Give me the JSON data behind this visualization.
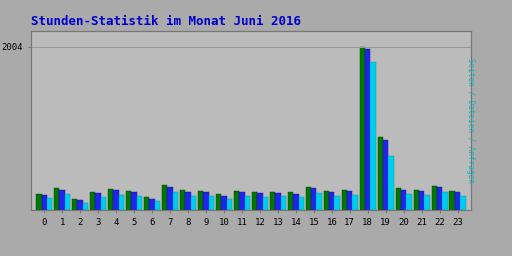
{
  "title": "Stunden-Statistik im Monat Juni 2016",
  "title_color": "#0000cc",
  "background_color": "#aaaaaa",
  "plot_bg_color": "#bbbbbb",
  "ylabel_right": "Seiten / Dateien / Anfragen",
  "ylabel_right_color": "#00bbcc",
  "hours": [
    0,
    1,
    2,
    3,
    4,
    5,
    6,
    7,
    8,
    9,
    10,
    11,
    12,
    13,
    14,
    15,
    16,
    17,
    18,
    19,
    20,
    21,
    22,
    23
  ],
  "seiten": [
    200,
    270,
    130,
    220,
    255,
    235,
    155,
    300,
    240,
    235,
    190,
    235,
    220,
    225,
    215,
    280,
    235,
    250,
    2004,
    900,
    265,
    250,
    295,
    230
  ],
  "dateien": [
    185,
    250,
    120,
    205,
    240,
    218,
    140,
    285,
    225,
    218,
    175,
    218,
    205,
    210,
    200,
    265,
    218,
    235,
    1980,
    860,
    248,
    235,
    278,
    215
  ],
  "anfragen": [
    145,
    195,
    90,
    162,
    188,
    170,
    108,
    222,
    177,
    170,
    135,
    170,
    160,
    165,
    155,
    207,
    170,
    183,
    1820,
    660,
    193,
    183,
    218,
    168
  ],
  "color_seiten": "#007700",
  "color_dateien": "#2222ee",
  "color_anfragen": "#00ccee",
  "bar_width": 0.3,
  "ylim": [
    0,
    2200
  ],
  "ytick_val": 2004,
  "grid_color": "#999999",
  "font_family": "monospace",
  "spine_color": "#777777"
}
